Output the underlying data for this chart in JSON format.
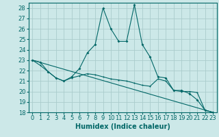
{
  "xlabel": "Humidex (Indice chaleur)",
  "ylabel": "",
  "background_color": "#cce8e8",
  "grid_color": "#aacccc",
  "line_color": "#006666",
  "xlim": [
    -0.5,
    23.5
  ],
  "ylim": [
    18,
    28.5
  ],
  "yticks": [
    18,
    19,
    20,
    21,
    22,
    23,
    24,
    25,
    26,
    27,
    28
  ],
  "xticks": [
    0,
    1,
    2,
    3,
    4,
    5,
    6,
    7,
    8,
    9,
    10,
    11,
    12,
    13,
    14,
    15,
    16,
    17,
    18,
    19,
    20,
    21,
    22,
    23
  ],
  "series1_x": [
    0,
    1,
    2,
    3,
    4,
    5,
    6,
    7,
    8,
    9,
    10,
    11,
    12,
    13,
    14,
    15,
    16,
    17,
    18,
    19,
    20,
    21,
    22,
    23
  ],
  "series1_y": [
    23.0,
    22.8,
    21.9,
    21.3,
    21.0,
    21.4,
    22.2,
    23.7,
    24.5,
    28.0,
    26.0,
    24.8,
    24.8,
    28.3,
    24.5,
    23.3,
    21.4,
    21.3,
    20.1,
    20.1,
    19.8,
    19.2,
    18.2,
    18.0
  ],
  "series2_x": [
    0,
    1,
    2,
    3,
    4,
    5,
    6,
    7,
    8,
    9,
    10,
    11,
    12,
    13,
    14,
    15,
    16,
    17,
    18,
    19,
    20,
    21,
    22,
    23
  ],
  "series2_y": [
    23.0,
    22.5,
    21.9,
    21.3,
    21.0,
    21.3,
    21.5,
    21.7,
    21.6,
    21.4,
    21.2,
    21.1,
    21.0,
    20.8,
    20.6,
    20.5,
    21.2,
    21.0,
    20.1,
    20.0,
    20.0,
    19.9,
    18.2,
    18.0
  ],
  "series3_x": [
    0,
    23
  ],
  "series3_y": [
    23.0,
    18.0
  ],
  "tick_fontsize": 6,
  "label_fontsize": 7
}
